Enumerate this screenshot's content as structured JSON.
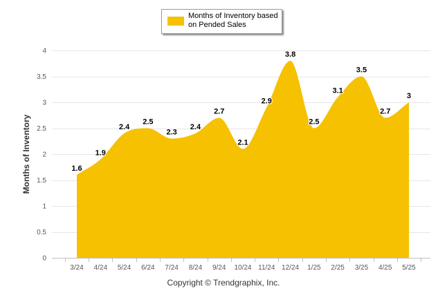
{
  "chart_data": {
    "type": "area",
    "categories": [
      "3/24",
      "4/24",
      "5/24",
      "6/24",
      "7/24",
      "8/24",
      "9/24",
      "10/24",
      "11/24",
      "12/24",
      "1/25",
      "2/25",
      "3/25",
      "4/25",
      "5/25"
    ],
    "series": [
      {
        "name": "Months of Inventory based on Pended Sales",
        "values": [
          1.6,
          1.9,
          2.4,
          2.5,
          2.3,
          2.4,
          2.7,
          2.1,
          2.9,
          3.8,
          2.5,
          3.1,
          3.5,
          2.7,
          3
        ],
        "color": "#f5c100"
      }
    ],
    "data_labels": [
      "1.6",
      "1.9",
      "2.4",
      "2.5",
      "2.3",
      "2.4",
      "2.7",
      "2.1",
      "2.9",
      "3.8",
      "2.5",
      "3.1",
      "3.5",
      "2.7",
      "3"
    ],
    "title": "",
    "xlabel": "",
    "ylabel": "Months of Inventory",
    "ylim": [
      0,
      4
    ],
    "yticks": [
      "0",
      "0.5",
      "1",
      "1.5",
      "2",
      "2.5",
      "3",
      "3.5",
      "4"
    ],
    "grid": true,
    "legend_position": "top-center"
  },
  "footer": "Copyright © Trendgraphix, Inc."
}
